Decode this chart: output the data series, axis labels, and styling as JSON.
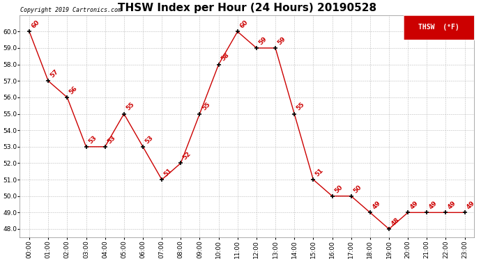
{
  "title": "THSW Index per Hour (24 Hours) 20190528",
  "copyright": "Copyright 2019 Cartronics.com",
  "legend_label": "THSW  (°F)",
  "hours": [
    0,
    1,
    2,
    3,
    4,
    5,
    6,
    7,
    8,
    9,
    10,
    11,
    12,
    13,
    14,
    15,
    16,
    17,
    18,
    19,
    20,
    21,
    22,
    23
  ],
  "values": [
    60,
    57,
    56,
    53,
    53,
    55,
    53,
    51,
    52,
    55,
    58,
    60,
    59,
    59,
    55,
    51,
    50,
    50,
    49,
    48,
    49,
    49,
    49,
    49
  ],
  "x_labels": [
    "00:00",
    "01:00",
    "02:00",
    "03:00",
    "04:00",
    "05:00",
    "06:00",
    "07:00",
    "08:00",
    "09:00",
    "10:00",
    "11:00",
    "12:00",
    "13:00",
    "14:00",
    "15:00",
    "16:00",
    "17:00",
    "18:00",
    "19:00",
    "20:00",
    "21:00",
    "22:00",
    "23:00"
  ],
  "ylim": [
    47.5,
    61.0
  ],
  "yticks": [
    48.0,
    49.0,
    50.0,
    51.0,
    52.0,
    53.0,
    54.0,
    55.0,
    56.0,
    57.0,
    58.0,
    59.0,
    60.0
  ],
  "line_color": "#cc0000",
  "marker_color": "#000000",
  "label_color": "#cc0000",
  "background_color": "#ffffff",
  "grid_color": "#bbbbbb",
  "title_fontsize": 11,
  "label_fontsize": 6.5,
  "tick_fontsize": 6.5,
  "copyright_fontsize": 6.0
}
